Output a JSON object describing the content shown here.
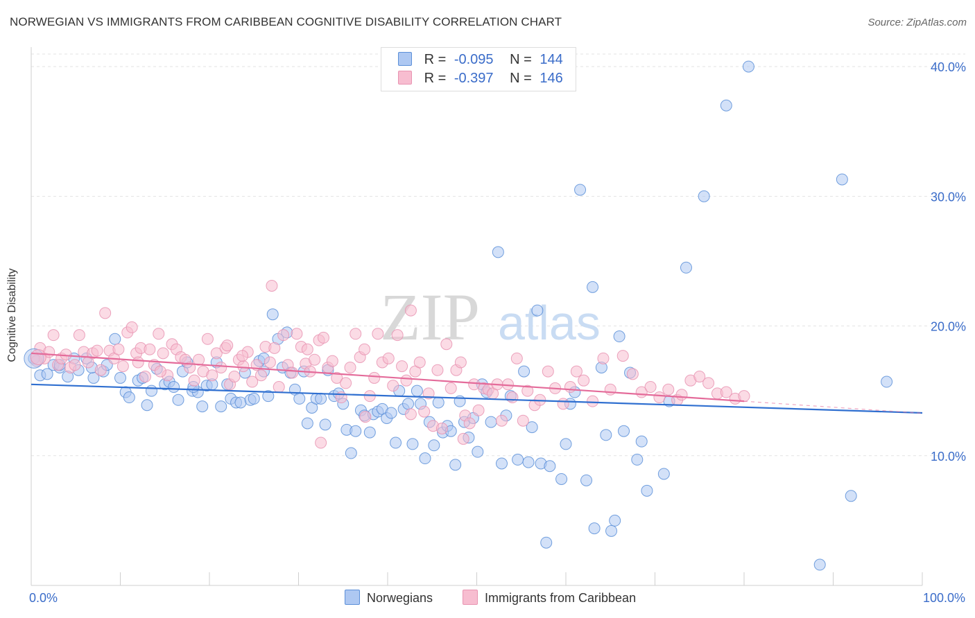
{
  "title": "NORWEGIAN VS IMMIGRANTS FROM CARIBBEAN COGNITIVE DISABILITY CORRELATION CHART",
  "source": "Source: ZipAtlas.com",
  "watermark": {
    "zip": "ZIP",
    "atlas": "atlas"
  },
  "legend": {
    "r_label": "R =",
    "n_label": "N =",
    "items": [
      {
        "r": "-0.095",
        "n": "144",
        "fill": "#aec8f2",
        "stroke": "#5b8fd8"
      },
      {
        "r": "-0.397",
        "n": "146",
        "fill": "#f7bdd0",
        "stroke": "#e893b1"
      }
    ]
  },
  "bottom_legend": [
    {
      "label": "Norwegians",
      "fill": "#aec8f2",
      "stroke": "#5b8fd8"
    },
    {
      "label": "Immigrants from Caribbean",
      "fill": "#f7bdd0",
      "stroke": "#e893b1"
    }
  ],
  "chart_data": {
    "type": "scatter",
    "title": "NORWEGIAN VS IMMIGRANTS FROM CARIBBEAN COGNITIVE DISABILITY CORRELATION CHART",
    "xlabel": "",
    "ylabel": "Cognitive Disability",
    "xlim": [
      0,
      100
    ],
    "ylim": [
      0,
      41.5
    ],
    "x_tick_labels": [
      {
        "value": 0,
        "label": "0.0%"
      },
      {
        "value": 100,
        "label": "100.0%"
      }
    ],
    "y_tick_labels": [
      {
        "value": 10,
        "label": "10.0%"
      },
      {
        "value": 20,
        "label": "20.0%"
      },
      {
        "value": 30,
        "label": "30.0%"
      },
      {
        "value": 40,
        "label": "40.0%"
      }
    ],
    "series": [
      {
        "name": "Norwegians",
        "color": "#5b8fd8",
        "fill": "#aec8f2",
        "trend": {
          "x": [
            0,
            100
          ],
          "y": [
            15.5,
            13.3
          ],
          "dashed_from": null
        },
        "points": [
          [
            0.3,
            17.5
          ],
          [
            1,
            16.2
          ],
          [
            1.8,
            16.3
          ],
          [
            2.5,
            17
          ],
          [
            3.2,
            16.8
          ],
          [
            4.1,
            16.1
          ],
          [
            5.3,
            16.6
          ],
          [
            6.2,
            17.5
          ],
          [
            7,
            16
          ],
          [
            8.1,
            16.5
          ],
          [
            8.5,
            17
          ],
          [
            9.4,
            19
          ],
          [
            10,
            16
          ],
          [
            10.6,
            14.9
          ],
          [
            11,
            14.5
          ],
          [
            12,
            15.8
          ],
          [
            12.5,
            16
          ],
          [
            13,
            13.9
          ],
          [
            13.5,
            15
          ],
          [
            14.1,
            16.7
          ],
          [
            15,
            15.5
          ],
          [
            15.5,
            15.7
          ],
          [
            16,
            15.3
          ],
          [
            16.5,
            14.3
          ],
          [
            17,
            16.5
          ],
          [
            17.5,
            17.2
          ],
          [
            18.1,
            15
          ],
          [
            18.7,
            14.9
          ],
          [
            19.2,
            13.8
          ],
          [
            19.7,
            15.4
          ],
          [
            20.3,
            15.5
          ],
          [
            20.8,
            17.2
          ],
          [
            21.3,
            13.8
          ],
          [
            22,
            15.5
          ],
          [
            22.4,
            14.4
          ],
          [
            23,
            14.1
          ],
          [
            23.5,
            14.1
          ],
          [
            24,
            16.4
          ],
          [
            24.6,
            14.3
          ],
          [
            25,
            14.4
          ],
          [
            25.6,
            17.3
          ],
          [
            26.1,
            16.5
          ],
          [
            26.6,
            14.6
          ],
          [
            27.1,
            20.9
          ],
          [
            27.7,
            19
          ],
          [
            28.2,
            16.8
          ],
          [
            28.7,
            19.5
          ],
          [
            29.1,
            16.4
          ],
          [
            29.6,
            15.1
          ],
          [
            30.1,
            14.4
          ],
          [
            30.6,
            16.5
          ],
          [
            31,
            12.5
          ],
          [
            31.5,
            13.7
          ],
          [
            32,
            14.4
          ],
          [
            32.5,
            14.4
          ],
          [
            33,
            12.4
          ],
          [
            34,
            14.6
          ],
          [
            34.5,
            14.8
          ],
          [
            35,
            14
          ],
          [
            35.4,
            12
          ],
          [
            35.9,
            10.2
          ],
          [
            36.4,
            11.9
          ],
          [
            37,
            13.5
          ],
          [
            37.4,
            13.1
          ],
          [
            38,
            11.8
          ],
          [
            38.4,
            13.2
          ],
          [
            38.9,
            13.4
          ],
          [
            39.4,
            13.6
          ],
          [
            39.9,
            12.9
          ],
          [
            40.4,
            13.3
          ],
          [
            40.9,
            11
          ],
          [
            41.3,
            15
          ],
          [
            41.8,
            13.6
          ],
          [
            42.3,
            14
          ],
          [
            42.8,
            10.9
          ],
          [
            43.3,
            15
          ],
          [
            43.7,
            14
          ],
          [
            44.2,
            9.8
          ],
          [
            44.7,
            12.6
          ],
          [
            45.2,
            10.8
          ],
          [
            45.7,
            14.1
          ],
          [
            46.2,
            11.8
          ],
          [
            46.7,
            12.3
          ],
          [
            47.1,
            11.9
          ],
          [
            47.6,
            9.3
          ],
          [
            48.1,
            14.2
          ],
          [
            48.6,
            12.6
          ],
          [
            49.1,
            11.4
          ],
          [
            49.6,
            12.9
          ],
          [
            50.1,
            10.3
          ],
          [
            50.6,
            15.5
          ],
          [
            51.1,
            14.9
          ],
          [
            51.6,
            12.6
          ],
          [
            52.4,
            25.7
          ],
          [
            52.8,
            9.4
          ],
          [
            53.3,
            13.1
          ],
          [
            53.8,
            14.6
          ],
          [
            54.6,
            9.7
          ],
          [
            55.3,
            16.5
          ],
          [
            55.8,
            9.5
          ],
          [
            56.2,
            12.2
          ],
          [
            56.8,
            21.2
          ],
          [
            57.2,
            9.4
          ],
          [
            57.8,
            3.3
          ],
          [
            58.2,
            9.2
          ],
          [
            59.5,
            8.2
          ],
          [
            60,
            10.9
          ],
          [
            60.5,
            14
          ],
          [
            61,
            14.9
          ],
          [
            61.6,
            30.5
          ],
          [
            62.3,
            8.1
          ],
          [
            63,
            23
          ],
          [
            63.2,
            4.4
          ],
          [
            64,
            16.8
          ],
          [
            64.5,
            11.6
          ],
          [
            65.1,
            4.2
          ],
          [
            65.5,
            5
          ],
          [
            66,
            19.2
          ],
          [
            66.5,
            11.9
          ],
          [
            67.2,
            16.4
          ],
          [
            68,
            9.7
          ],
          [
            68.5,
            11.1
          ],
          [
            69.1,
            7.3
          ],
          [
            71,
            8.6
          ],
          [
            71.6,
            14.2
          ],
          [
            73.5,
            24.5
          ],
          [
            75.5,
            30
          ],
          [
            80.5,
            40
          ],
          [
            78,
            37
          ],
          [
            88.5,
            1.6
          ],
          [
            91,
            31.3
          ],
          [
            92,
            6.9
          ],
          [
            96,
            15.7
          ],
          [
            3.2,
            17
          ],
          [
            4.8,
            17.5
          ],
          [
            6.8,
            16.8
          ],
          [
            18.2,
            15.3
          ],
          [
            26.1,
            17.5
          ],
          [
            33.3,
            16.6
          ]
        ]
      },
      {
        "name": "Immigrants from Caribbean",
        "color": "#e893b1",
        "fill": "#f7bdd0",
        "trend": {
          "x": [
            0,
            80
          ],
          "y": [
            17.9,
            14.2
          ],
          "dashed_from": 80
        },
        "points": [
          [
            0.6,
            17.3
          ],
          [
            1,
            18.3
          ],
          [
            1.5,
            17.5
          ],
          [
            2,
            18
          ],
          [
            2.5,
            19.3
          ],
          [
            3,
            17
          ],
          [
            3.4,
            17.5
          ],
          [
            3.9,
            17.8
          ],
          [
            4.4,
            16.8
          ],
          [
            4.9,
            17
          ],
          [
            5.4,
            19.3
          ],
          [
            5.9,
            18
          ],
          [
            6.4,
            17.2
          ],
          [
            6.9,
            17.9
          ],
          [
            7.4,
            18.1
          ],
          [
            7.8,
            16.6
          ],
          [
            8.3,
            21
          ],
          [
            8.8,
            18.1
          ],
          [
            9.3,
            17.5
          ],
          [
            9.8,
            18.2
          ],
          [
            10.3,
            16.9
          ],
          [
            10.8,
            19.5
          ],
          [
            11.3,
            19.9
          ],
          [
            11.8,
            17.9
          ],
          [
            12.3,
            18.3
          ],
          [
            12.8,
            16.1
          ],
          [
            13.3,
            18.2
          ],
          [
            13.8,
            17
          ],
          [
            14.3,
            19.4
          ],
          [
            14.8,
            17.9
          ],
          [
            15.3,
            16.2
          ],
          [
            15.8,
            18.6
          ],
          [
            16.3,
            18.2
          ],
          [
            16.8,
            17.6
          ],
          [
            17.3,
            17.4
          ],
          [
            17.8,
            16.8
          ],
          [
            18.3,
            15.8
          ],
          [
            18.8,
            17.4
          ],
          [
            19.3,
            16.5
          ],
          [
            19.8,
            19
          ],
          [
            20.3,
            16.2
          ],
          [
            20.8,
            17.9
          ],
          [
            21.3,
            16.8
          ],
          [
            21.8,
            18.3
          ],
          [
            22.3,
            15.5
          ],
          [
            22.8,
            16.1
          ],
          [
            23.3,
            17.4
          ],
          [
            23.8,
            16.9
          ],
          [
            24.3,
            18
          ],
          [
            24.8,
            15.7
          ],
          [
            25.3,
            17
          ],
          [
            25.8,
            16.2
          ],
          [
            26.3,
            18.4
          ],
          [
            26.8,
            17.2
          ],
          [
            27.3,
            18.3
          ],
          [
            27.8,
            15.3
          ],
          [
            28.3,
            19.3
          ],
          [
            28.8,
            17
          ],
          [
            29.3,
            16.4
          ],
          [
            29.8,
            19.4
          ],
          [
            30.3,
            18.4
          ],
          [
            30.8,
            17.1
          ],
          [
            31.3,
            16.5
          ],
          [
            31.8,
            17.4
          ],
          [
            32.3,
            18.9
          ],
          [
            32.8,
            19.1
          ],
          [
            33.3,
            16.8
          ],
          [
            33.8,
            17.3
          ],
          [
            34.3,
            16
          ],
          [
            34.8,
            14.5
          ],
          [
            35.3,
            15.6
          ],
          [
            35.8,
            16.8
          ],
          [
            36.4,
            19.4
          ],
          [
            36.9,
            17.6
          ],
          [
            37.4,
            18.2
          ],
          [
            38,
            14.6
          ],
          [
            38.5,
            16
          ],
          [
            38.9,
            19.4
          ],
          [
            39.4,
            17.2
          ],
          [
            40.1,
            17.5
          ],
          [
            40.6,
            15.4
          ],
          [
            41.1,
            19.3
          ],
          [
            41.6,
            16.9
          ],
          [
            42.1,
            15.8
          ],
          [
            42.6,
            13.2
          ],
          [
            43.1,
            16.5
          ],
          [
            43.6,
            17.2
          ],
          [
            44.1,
            13.4
          ],
          [
            44.6,
            14.8
          ],
          [
            45.1,
            12.3
          ],
          [
            45.6,
            16.6
          ],
          [
            46.1,
            12.1
          ],
          [
            46.6,
            18.6
          ],
          [
            47.1,
            15.2
          ],
          [
            47.7,
            16.6
          ],
          [
            48.2,
            17.2
          ],
          [
            48.7,
            13.1
          ],
          [
            49.2,
            12.5
          ],
          [
            49.7,
            15.5
          ],
          [
            50.2,
            13.5
          ],
          [
            50.8,
            15.2
          ],
          [
            51.3,
            15.1
          ],
          [
            51.8,
            14.8
          ],
          [
            52.3,
            15.5
          ],
          [
            52.8,
            12.7
          ],
          [
            53.5,
            15.5
          ],
          [
            54,
            14.5
          ],
          [
            54.5,
            17.5
          ],
          [
            55.2,
            12.7
          ],
          [
            55.7,
            15
          ],
          [
            56.5,
            13.9
          ],
          [
            57.1,
            14.3
          ],
          [
            58,
            16.5
          ],
          [
            58.8,
            15.2
          ],
          [
            59.7,
            14
          ],
          [
            60.5,
            15.3
          ],
          [
            61.2,
            16.5
          ],
          [
            62,
            15.8
          ],
          [
            63,
            14.2
          ],
          [
            64.2,
            17.5
          ],
          [
            65,
            15.1
          ],
          [
            66.4,
            17.7
          ],
          [
            67.5,
            16.3
          ],
          [
            68.5,
            14.9
          ],
          [
            69.5,
            15.3
          ],
          [
            70.5,
            14.5
          ],
          [
            71.5,
            15.1
          ],
          [
            72.5,
            14.3
          ],
          [
            73,
            14.7
          ],
          [
            74,
            15.8
          ],
          [
            75,
            16.1
          ],
          [
            76,
            15.6
          ],
          [
            77,
            14.8
          ],
          [
            78,
            14.9
          ],
          [
            79,
            14.4
          ],
          [
            80,
            14.6
          ],
          [
            27,
            23.1
          ],
          [
            32.5,
            11
          ],
          [
            42.6,
            21.2
          ],
          [
            37.5,
            13
          ],
          [
            48.5,
            11.3
          ],
          [
            12,
            17.2
          ],
          [
            22,
            18.5
          ],
          [
            31,
            18.2
          ],
          [
            23.7,
            17.7
          ],
          [
            14.5,
            16.5
          ]
        ]
      }
    ]
  }
}
